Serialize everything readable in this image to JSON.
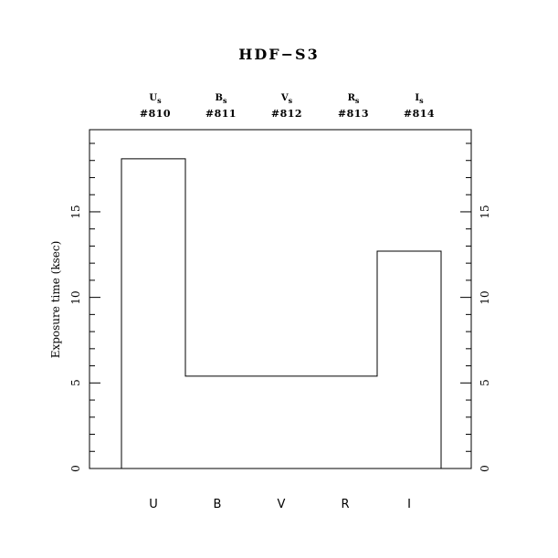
{
  "page": {
    "background_color": "#ffffff",
    "ink_color": "#000000"
  },
  "chart_data": {
    "type": "bar",
    "subtype": "step-histogram-outline",
    "title": "HDF−S3",
    "ylabel": "Exposure time (ksec)",
    "categories": [
      "U",
      "B",
      "V",
      "R",
      "I"
    ],
    "values": [
      18.1,
      5.4,
      5.4,
      5.4,
      12.7
    ],
    "units": "ksec",
    "ylim": [
      0,
      19.8
    ],
    "y_major_ticks": [
      0,
      5,
      10,
      15
    ],
    "y_tick_labels": [
      "0",
      "5",
      "10",
      "15"
    ],
    "y_minor_tick_step": 1,
    "grid": false,
    "legend": "none",
    "axes_with_ticks": [
      "left",
      "right"
    ],
    "top_axis_labels": [
      {
        "band": "U",
        "sub": "s",
        "id": "#810"
      },
      {
        "band": "B",
        "sub": "s",
        "id": "#811"
      },
      {
        "band": "V",
        "sub": "s",
        "id": "#812"
      },
      {
        "band": "R",
        "sub": "s",
        "id": "#813"
      },
      {
        "band": "I",
        "sub": "s",
        "id": "#814"
      }
    ]
  }
}
